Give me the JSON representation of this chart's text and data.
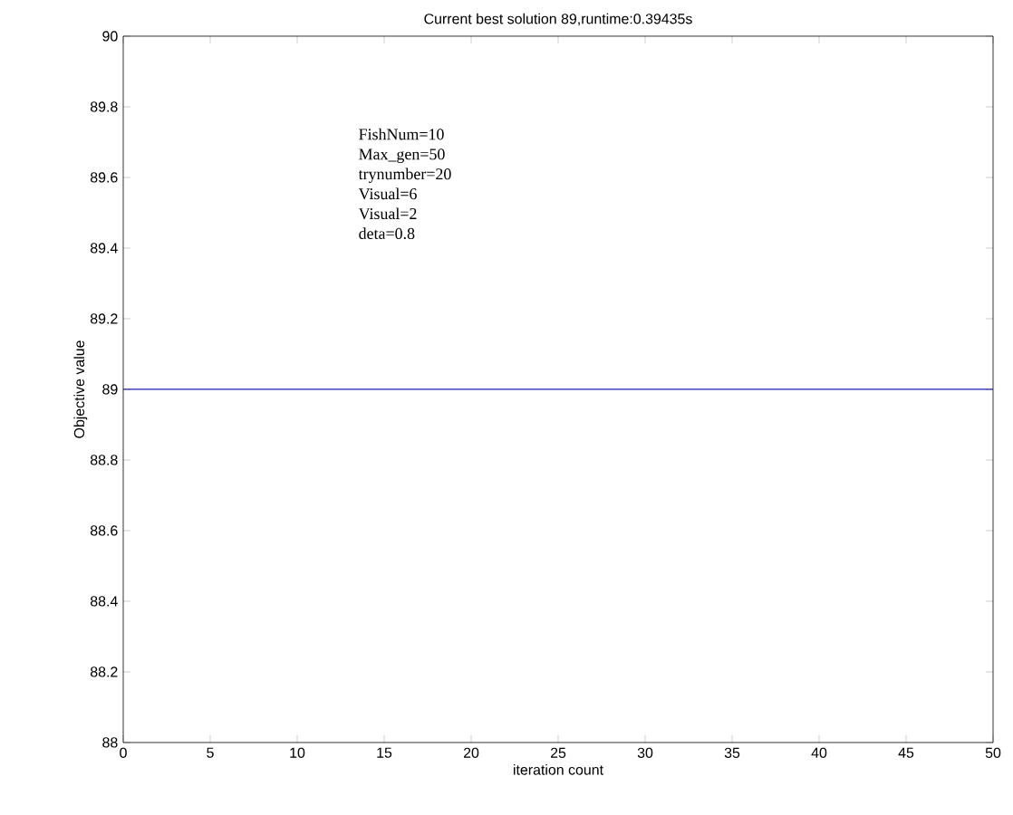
{
  "chart_data": {
    "type": "line",
    "title": "Current best solution 89,runtime:0.39435s",
    "xlabel": "iteration count",
    "ylabel": "Objective value",
    "x": [
      0,
      50
    ],
    "series": [
      {
        "color": "#1f1fb0",
        "values": [
          89,
          89
        ]
      }
    ],
    "xlim": [
      0,
      50
    ],
    "ylim": [
      88,
      90
    ],
    "xticks": [
      0,
      5,
      10,
      15,
      20,
      25,
      30,
      35,
      40,
      45,
      50
    ],
    "yticks": [
      88,
      88.2,
      88.4,
      88.6,
      88.8,
      89,
      89.2,
      89.4,
      89.6,
      89.8,
      90
    ],
    "annotations": [
      "FishNum=10",
      "Max_gen=50",
      "trynumber=20",
      "Visual=6",
      "Visual=2",
      "deta=0.8"
    ],
    "grid": false,
    "marker": "none",
    "line_style": "solid"
  }
}
